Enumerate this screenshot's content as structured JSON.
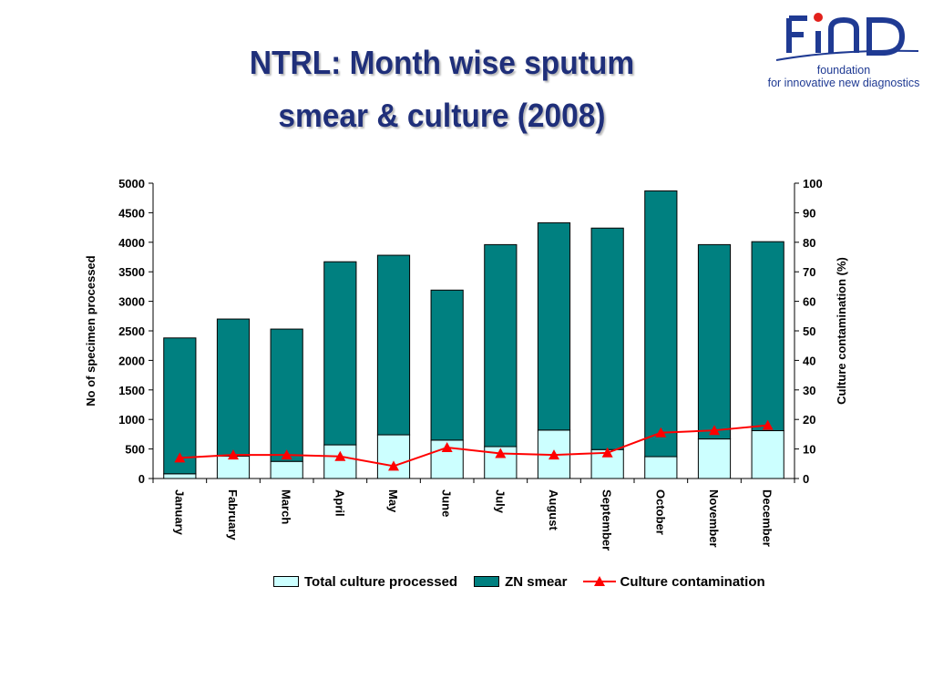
{
  "slide": {
    "title_line1": "NTRL: Month wise sputum",
    "title_line2": "smear & culture (2008)"
  },
  "logo": {
    "name": "FIND",
    "line1": "foundation",
    "line2": "for innovative new diagnostics",
    "color": "#1f3a93",
    "dot_color": "#e2211c"
  },
  "chart_data": {
    "type": "bar",
    "stacked": true,
    "categories": [
      "January",
      "Fabruary",
      "March",
      "April",
      "May",
      "June",
      "July",
      "August",
      "September",
      "October",
      "November",
      "December"
    ],
    "series": [
      {
        "name": "Total culture processed",
        "axis": "left",
        "color": "#ccffff",
        "values": [
          80,
          380,
          290,
          570,
          740,
          650,
          540,
          820,
          490,
          370,
          670,
          810
        ]
      },
      {
        "name": "ZN smear",
        "axis": "left",
        "color": "#008080",
        "values": [
          2300,
          2320,
          2240,
          3100,
          3040,
          2540,
          3420,
          3510,
          3750,
          4500,
          3290,
          3200
        ]
      },
      {
        "name": "Culture contamination",
        "axis": "right",
        "type": "line",
        "marker": "triangle",
        "color": "#ff0000",
        "values": [
          7,
          8,
          8,
          7.5,
          4.2,
          10.5,
          8.5,
          8,
          8.7,
          15.5,
          16.3,
          18
        ]
      }
    ],
    "ylabel": "No of specimen processed",
    "y2label": "Culture contamination (%)",
    "ylim": [
      0,
      5000
    ],
    "y2lim": [
      0,
      100
    ],
    "yticks": [
      0,
      500,
      1000,
      1500,
      2000,
      2500,
      3000,
      3500,
      4000,
      4500,
      5000
    ],
    "y2ticks": [
      0,
      10,
      20,
      30,
      40,
      50,
      60,
      70,
      80,
      90,
      100
    ],
    "grid": false,
    "legend_position": "bottom"
  }
}
